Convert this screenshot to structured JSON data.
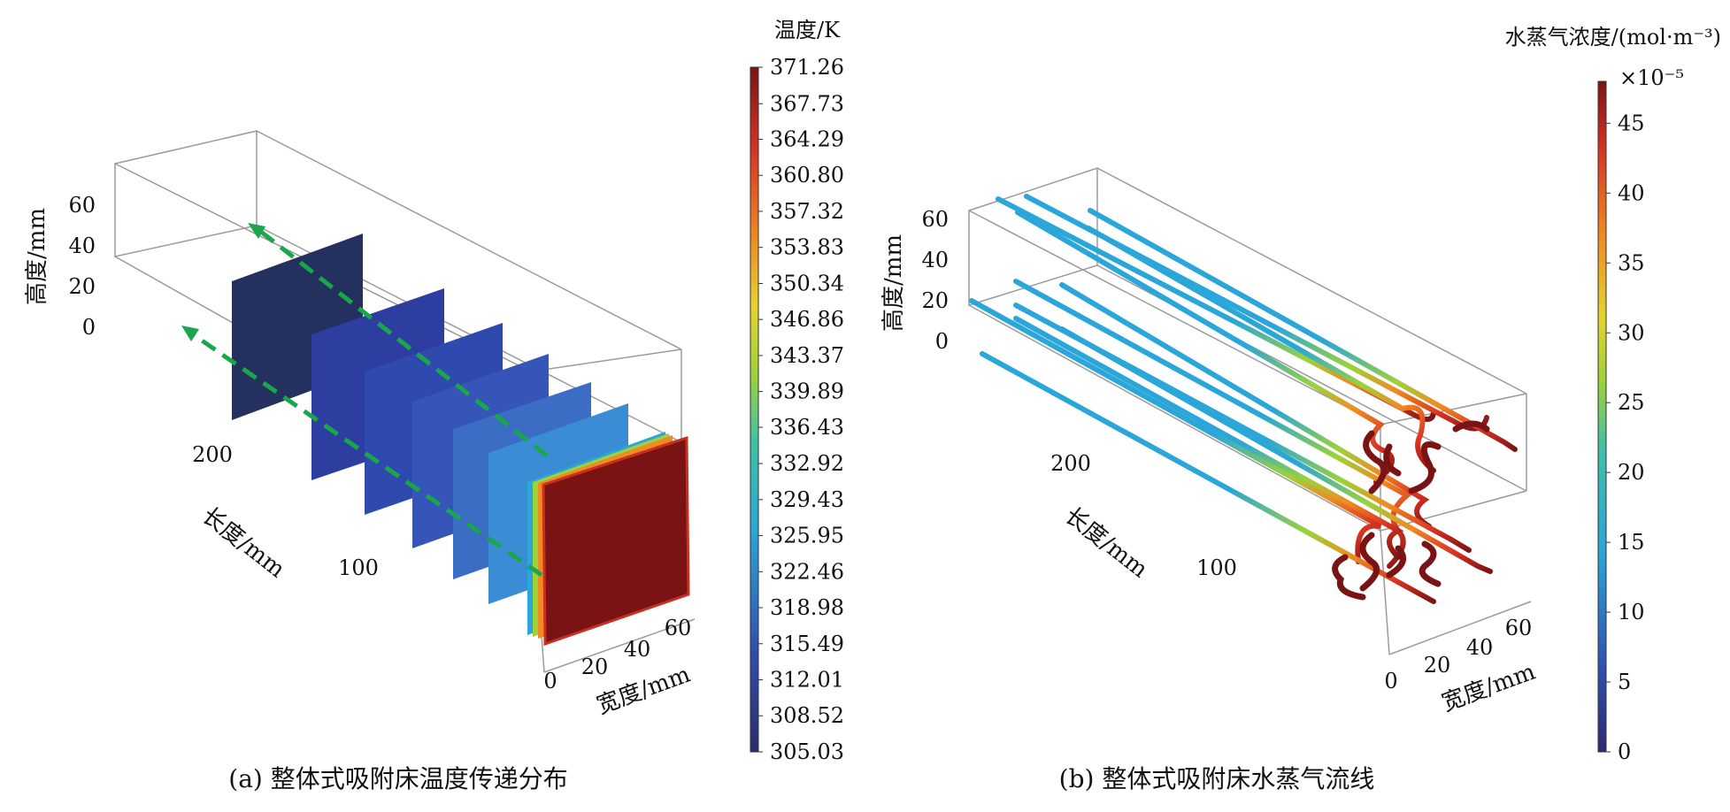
{
  "figure": {
    "panel_a": {
      "caption": "(a) 整体式吸附床温度传递分布",
      "colorbar_title": "温度/K",
      "colorbar_ticks": [
        "371.26",
        "367.73",
        "364.29",
        "360.80",
        "357.32",
        "353.83",
        "350.34",
        "346.86",
        "343.37",
        "339.89",
        "336.43",
        "332.92",
        "329.43",
        "325.95",
        "322.46",
        "318.98",
        "315.49",
        "312.01",
        "308.52",
        "305.03"
      ],
      "axes": {
        "height_label": "高度/mm",
        "length_label": "长度/mm",
        "width_label": "宽度/mm",
        "height_ticks": [
          "60",
          "40",
          "20",
          "0"
        ],
        "length_ticks": [
          "200",
          "100"
        ],
        "width_ticks": [
          "0",
          "20",
          "40",
          "60"
        ]
      }
    },
    "panel_b": {
      "caption": "(b) 整体式吸附床水蒸气流线",
      "colorbar_title": "水蒸气浓度/(mol·m⁻³)",
      "colorbar_multiplier": "×10⁻⁵",
      "colorbar_ticks": [
        "45",
        "40",
        "35",
        "30",
        "25",
        "20",
        "15",
        "10",
        "5",
        "0"
      ],
      "axes": {
        "height_label": "高度/mm",
        "length_label": "长度/mm",
        "width_label": "宽度/mm",
        "height_ticks": [
          "60",
          "40",
          "20",
          "0"
        ],
        "length_ticks": [
          "200",
          "100"
        ],
        "width_ticks": [
          "0",
          "20",
          "40",
          "60"
        ]
      }
    }
  },
  "colors": {
    "arrow": "#1aa64a",
    "box_line": "#9a9a9a",
    "hot": "#7a1414"
  },
  "chart_data": [
    {
      "type": "heatmap",
      "colorbar_title": "温度/K",
      "colorbar_range": [
        305.03,
        371.26
      ],
      "colorbar_ticks": [
        371.26,
        367.73,
        364.29,
        360.8,
        357.32,
        353.83,
        350.34,
        346.86,
        343.37,
        339.89,
        336.43,
        332.92,
        329.43,
        325.95,
        322.46,
        318.98,
        315.49,
        312.01,
        308.52,
        305.03
      ],
      "axes": {
        "height_label": "高度/mm",
        "length_label": "长度/mm",
        "width_label": "宽度/mm"
      },
      "height_ticks": [
        60,
        40,
        20,
        0
      ],
      "length_ticks": [
        200,
        100
      ],
      "width_ticks": [
        0,
        20,
        40,
        60
      ]
    },
    {
      "type": "line",
      "colorbar_title": "水蒸气浓度/(mol·m⁻³)",
      "colorbar_multiplier": "×10⁻⁵",
      "colorbar_range": [
        0,
        48
      ],
      "colorbar_ticks": [
        45,
        40,
        35,
        30,
        25,
        20,
        15,
        10,
        5,
        0
      ],
      "axes": {
        "height_label": "高度/mm",
        "length_label": "长度/mm",
        "width_label": "宽度/mm"
      },
      "height_ticks": [
        60,
        40,
        20,
        0
      ],
      "length_ticks": [
        200,
        100
      ],
      "width_ticks": [
        0,
        20,
        40,
        60
      ]
    }
  ]
}
